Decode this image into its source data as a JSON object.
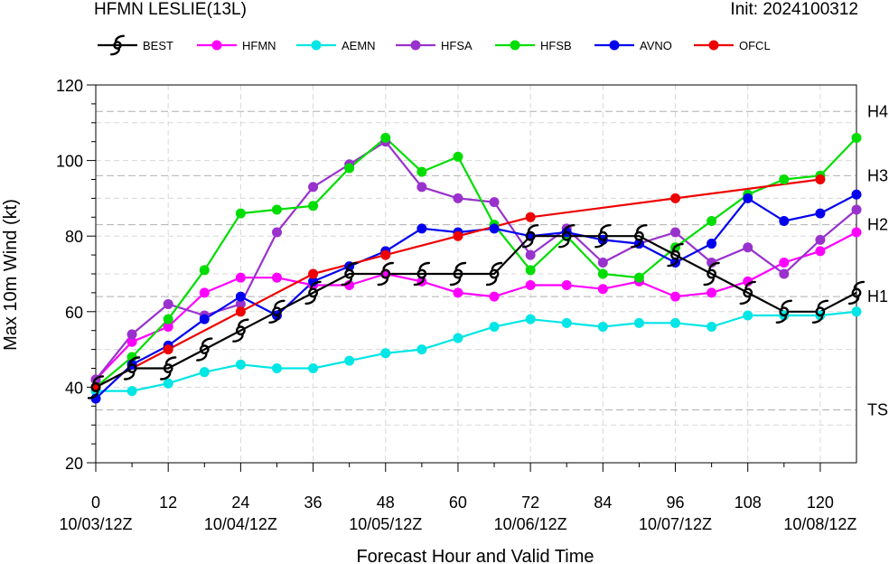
{
  "header": {
    "title": "HFMN LESLIE(13L)",
    "init": "Init: 2024100312"
  },
  "chart_data": {
    "type": "line",
    "xlabel": "Forecast Hour and Valid Time",
    "ylabel": "Max 10m Wind (kt)",
    "xlim": [
      0,
      126
    ],
    "ylim": [
      20,
      120
    ],
    "x_ticks": [
      0,
      12,
      24,
      36,
      48,
      60,
      72,
      84,
      96,
      108,
      120
    ],
    "date_ticks": [
      {
        "x": 0,
        "label": "10/03/12Z"
      },
      {
        "x": 24,
        "label": "10/04/12Z"
      },
      {
        "x": 48,
        "label": "10/05/12Z"
      },
      {
        "x": 72,
        "label": "10/06/12Z"
      },
      {
        "x": 96,
        "label": "10/07/12Z"
      },
      {
        "x": 120,
        "label": "10/08/12Z"
      }
    ],
    "y_ticks": [
      20,
      40,
      60,
      80,
      100,
      120
    ],
    "grid": true,
    "legend_position": "top",
    "thresholds": [
      {
        "label": "TS",
        "value": 34
      },
      {
        "label": "H1",
        "value": 64
      },
      {
        "label": "H2",
        "value": 83
      },
      {
        "label": "H3",
        "value": 96
      },
      {
        "label": "H4",
        "value": 113
      }
    ],
    "series": [
      {
        "name": "BEST",
        "color": "#000000",
        "marker": "hurricane",
        "x": [
          0,
          6,
          12,
          18,
          24,
          30,
          36,
          42,
          48,
          54,
          60,
          66,
          72,
          78,
          84,
          90,
          96,
          102,
          108,
          114,
          120,
          126
        ],
        "y": [
          40,
          45,
          45,
          50,
          55,
          60,
          65,
          70,
          70,
          70,
          70,
          70,
          80,
          80,
          80,
          80,
          75,
          70,
          65,
          60,
          60,
          65
        ]
      },
      {
        "name": "HFMN",
        "color": "#ff00ff",
        "marker": "circle",
        "x": [
          0,
          6,
          12,
          18,
          24,
          30,
          36,
          42,
          48,
          54,
          60,
          66,
          72,
          78,
          84,
          90,
          96,
          102,
          108,
          114,
          120,
          126
        ],
        "y": [
          42,
          52,
          56,
          65,
          69,
          69,
          67,
          67,
          70,
          68,
          65,
          64,
          67,
          67,
          66,
          68,
          64,
          65,
          68,
          73,
          76,
          81
        ]
      },
      {
        "name": "AEMN",
        "color": "#00e5e5",
        "marker": "circle",
        "x": [
          0,
          6,
          12,
          18,
          24,
          30,
          36,
          42,
          48,
          54,
          60,
          66,
          72,
          78,
          84,
          90,
          96,
          102,
          108,
          114,
          120,
          126
        ],
        "y": [
          39,
          39,
          41,
          44,
          46,
          45,
          45,
          47,
          49,
          50,
          53,
          56,
          58,
          57,
          56,
          57,
          57,
          56,
          59,
          59,
          59,
          60
        ]
      },
      {
        "name": "HFSA",
        "color": "#9932cc",
        "marker": "circle",
        "x": [
          0,
          6,
          12,
          18,
          24,
          30,
          36,
          42,
          48,
          54,
          60,
          66,
          72,
          78,
          84,
          90,
          96,
          102,
          108,
          114,
          120,
          126
        ],
        "y": [
          42,
          54,
          62,
          59,
          62,
          81,
          93,
          99,
          105,
          93,
          90,
          89,
          75,
          82,
          73,
          78,
          81,
          73,
          77,
          70,
          79,
          87
        ]
      },
      {
        "name": "HFSB",
        "color": "#00dd00",
        "marker": "circle",
        "x": [
          0,
          6,
          12,
          18,
          24,
          30,
          36,
          42,
          48,
          54,
          60,
          66,
          72,
          78,
          84,
          90,
          96,
          102,
          108,
          114,
          120,
          126
        ],
        "y": [
          40,
          48,
          58,
          71,
          86,
          87,
          88,
          98,
          106,
          97,
          101,
          83,
          71,
          80,
          70,
          69,
          77,
          84,
          91,
          95,
          96,
          106
        ]
      },
      {
        "name": "AVNO",
        "color": "#0000ee",
        "marker": "circle",
        "x": [
          0,
          6,
          12,
          18,
          24,
          30,
          36,
          42,
          48,
          54,
          60,
          66,
          72,
          78,
          84,
          90,
          96,
          102,
          108,
          114,
          120,
          126
        ],
        "y": [
          37,
          46,
          51,
          58,
          64,
          59,
          68,
          72,
          76,
          82,
          81,
          82,
          80,
          81,
          79,
          78,
          73,
          78,
          90,
          84,
          86,
          91
        ]
      },
      {
        "name": "OFCL",
        "color": "#ee0000",
        "marker": "circle",
        "x": [
          0,
          12,
          24,
          36,
          48,
          60,
          72,
          96,
          120
        ],
        "y": [
          40,
          50,
          60,
          70,
          75,
          80,
          85,
          90,
          95
        ]
      }
    ]
  }
}
